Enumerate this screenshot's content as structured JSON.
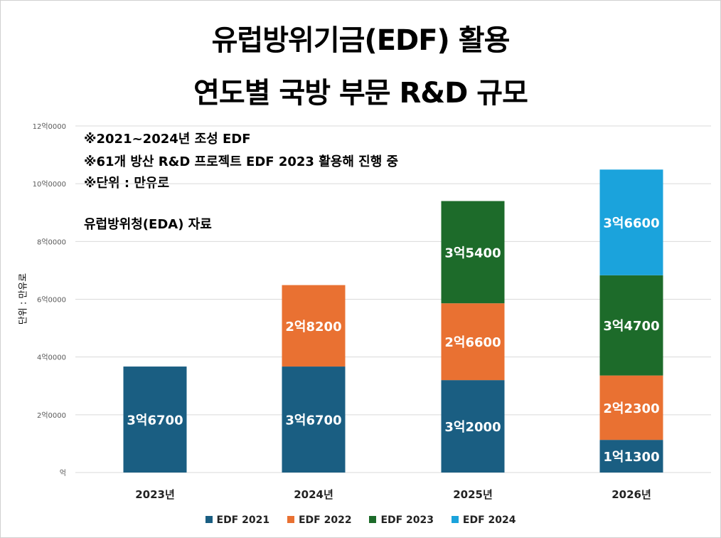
{
  "chart_data": {
    "type": "bar",
    "stacked": true,
    "title_lines": [
      "유럽방위기금(EDF) 활용",
      "연도별 국방 부문 R&D 규모"
    ],
    "notes": [
      "※2021~2024년 조성 EDF",
      "※61개 방산 R&D 프로젝트 EDF 2023 활용해 진행 중",
      "※단위 : 만유로"
    ],
    "source": "유럽방위청(EDA) 자료",
    "ylabel": "단위 : 만유로",
    "categories": [
      "2023년",
      "2024년",
      "2025년",
      "2026년"
    ],
    "ylim": [
      0,
      120000
    ],
    "yticks": [
      0,
      20000,
      40000,
      60000,
      80000,
      100000,
      120000
    ],
    "ytick_labels": [
      "억",
      "2억0000",
      "4억0000",
      "6억0000",
      "8억0000",
      "10억0000",
      "12억0000"
    ],
    "series": [
      {
        "name": "EDF 2021",
        "color": "#1a5e82",
        "values": [
          36700,
          36700,
          32000,
          11300
        ],
        "labels": [
          "3억6700",
          "3억6700",
          "3억2000",
          "1억1300"
        ]
      },
      {
        "name": "EDF 2022",
        "color": "#e97132",
        "values": [
          0,
          28200,
          26600,
          22300
        ],
        "labels": [
          "",
          "2억8200",
          "2억6600",
          "2억2300"
        ]
      },
      {
        "name": "EDF 2023",
        "color": "#1d6b2a",
        "values": [
          0,
          0,
          35400,
          34700
        ],
        "labels": [
          "",
          "",
          "3억5400",
          "3억4700"
        ]
      },
      {
        "name": "EDF 2024",
        "color": "#1ba3dc",
        "values": [
          0,
          0,
          0,
          36600
        ],
        "labels": [
          "",
          "",
          "",
          "3억6600"
        ]
      }
    ],
    "grid": true,
    "legend_position": "bottom"
  }
}
